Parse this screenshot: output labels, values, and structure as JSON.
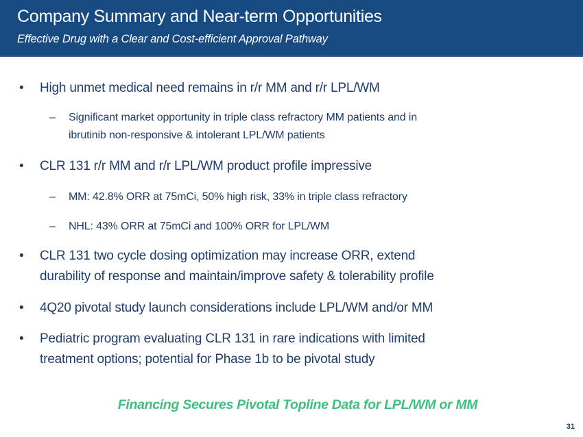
{
  "header": {
    "title": "Company Summary and Near-term Opportunities",
    "subtitle": "Effective Drug with a Clear and Cost-efficient Approval Pathway"
  },
  "bullet_marks": {
    "level1": "•",
    "level2": "–"
  },
  "bullets": [
    {
      "lines": [
        "High unmet medical need remains in r/r MM and r/r LPL/WM"
      ]
    },
    {
      "lines": [
        "Significant market opportunity in triple class refractory MM patients and in",
        "ibrutinib non-responsive & intolerant LPL/WM patients"
      ]
    },
    {
      "lines": [
        "CLR 131 r/r MM and r/r LPL/WM product profile impressive"
      ]
    },
    {
      "lines": [
        "MM: 42.8% ORR at 75mCi, 50% high risk, 33% in triple class refractory"
      ]
    },
    {
      "lines": [
        "NHL: 43% ORR at 75mCi and 100% ORR for LPL/WM"
      ]
    },
    {
      "lines": [
        "CLR 131 two cycle dosing optimization may increase ORR, extend",
        "durability of response and maintain/improve safety & tolerability profile"
      ]
    },
    {
      "lines": [
        "4Q20 pivotal study launch considerations include LPL/WM and/or MM"
      ]
    },
    {
      "lines": [
        "Pediatric program evaluating CLR 131 in rare indications with limited",
        "treatment options; potential for Phase 1b to be pivotal study"
      ]
    }
  ],
  "callout": "Financing Secures Pivotal Topline Data for LPL/WM or MM",
  "page_number": "31",
  "colors": {
    "header_bg": "#174A80",
    "text": "#1F3D6B",
    "callout": "#3DBF7F"
  }
}
